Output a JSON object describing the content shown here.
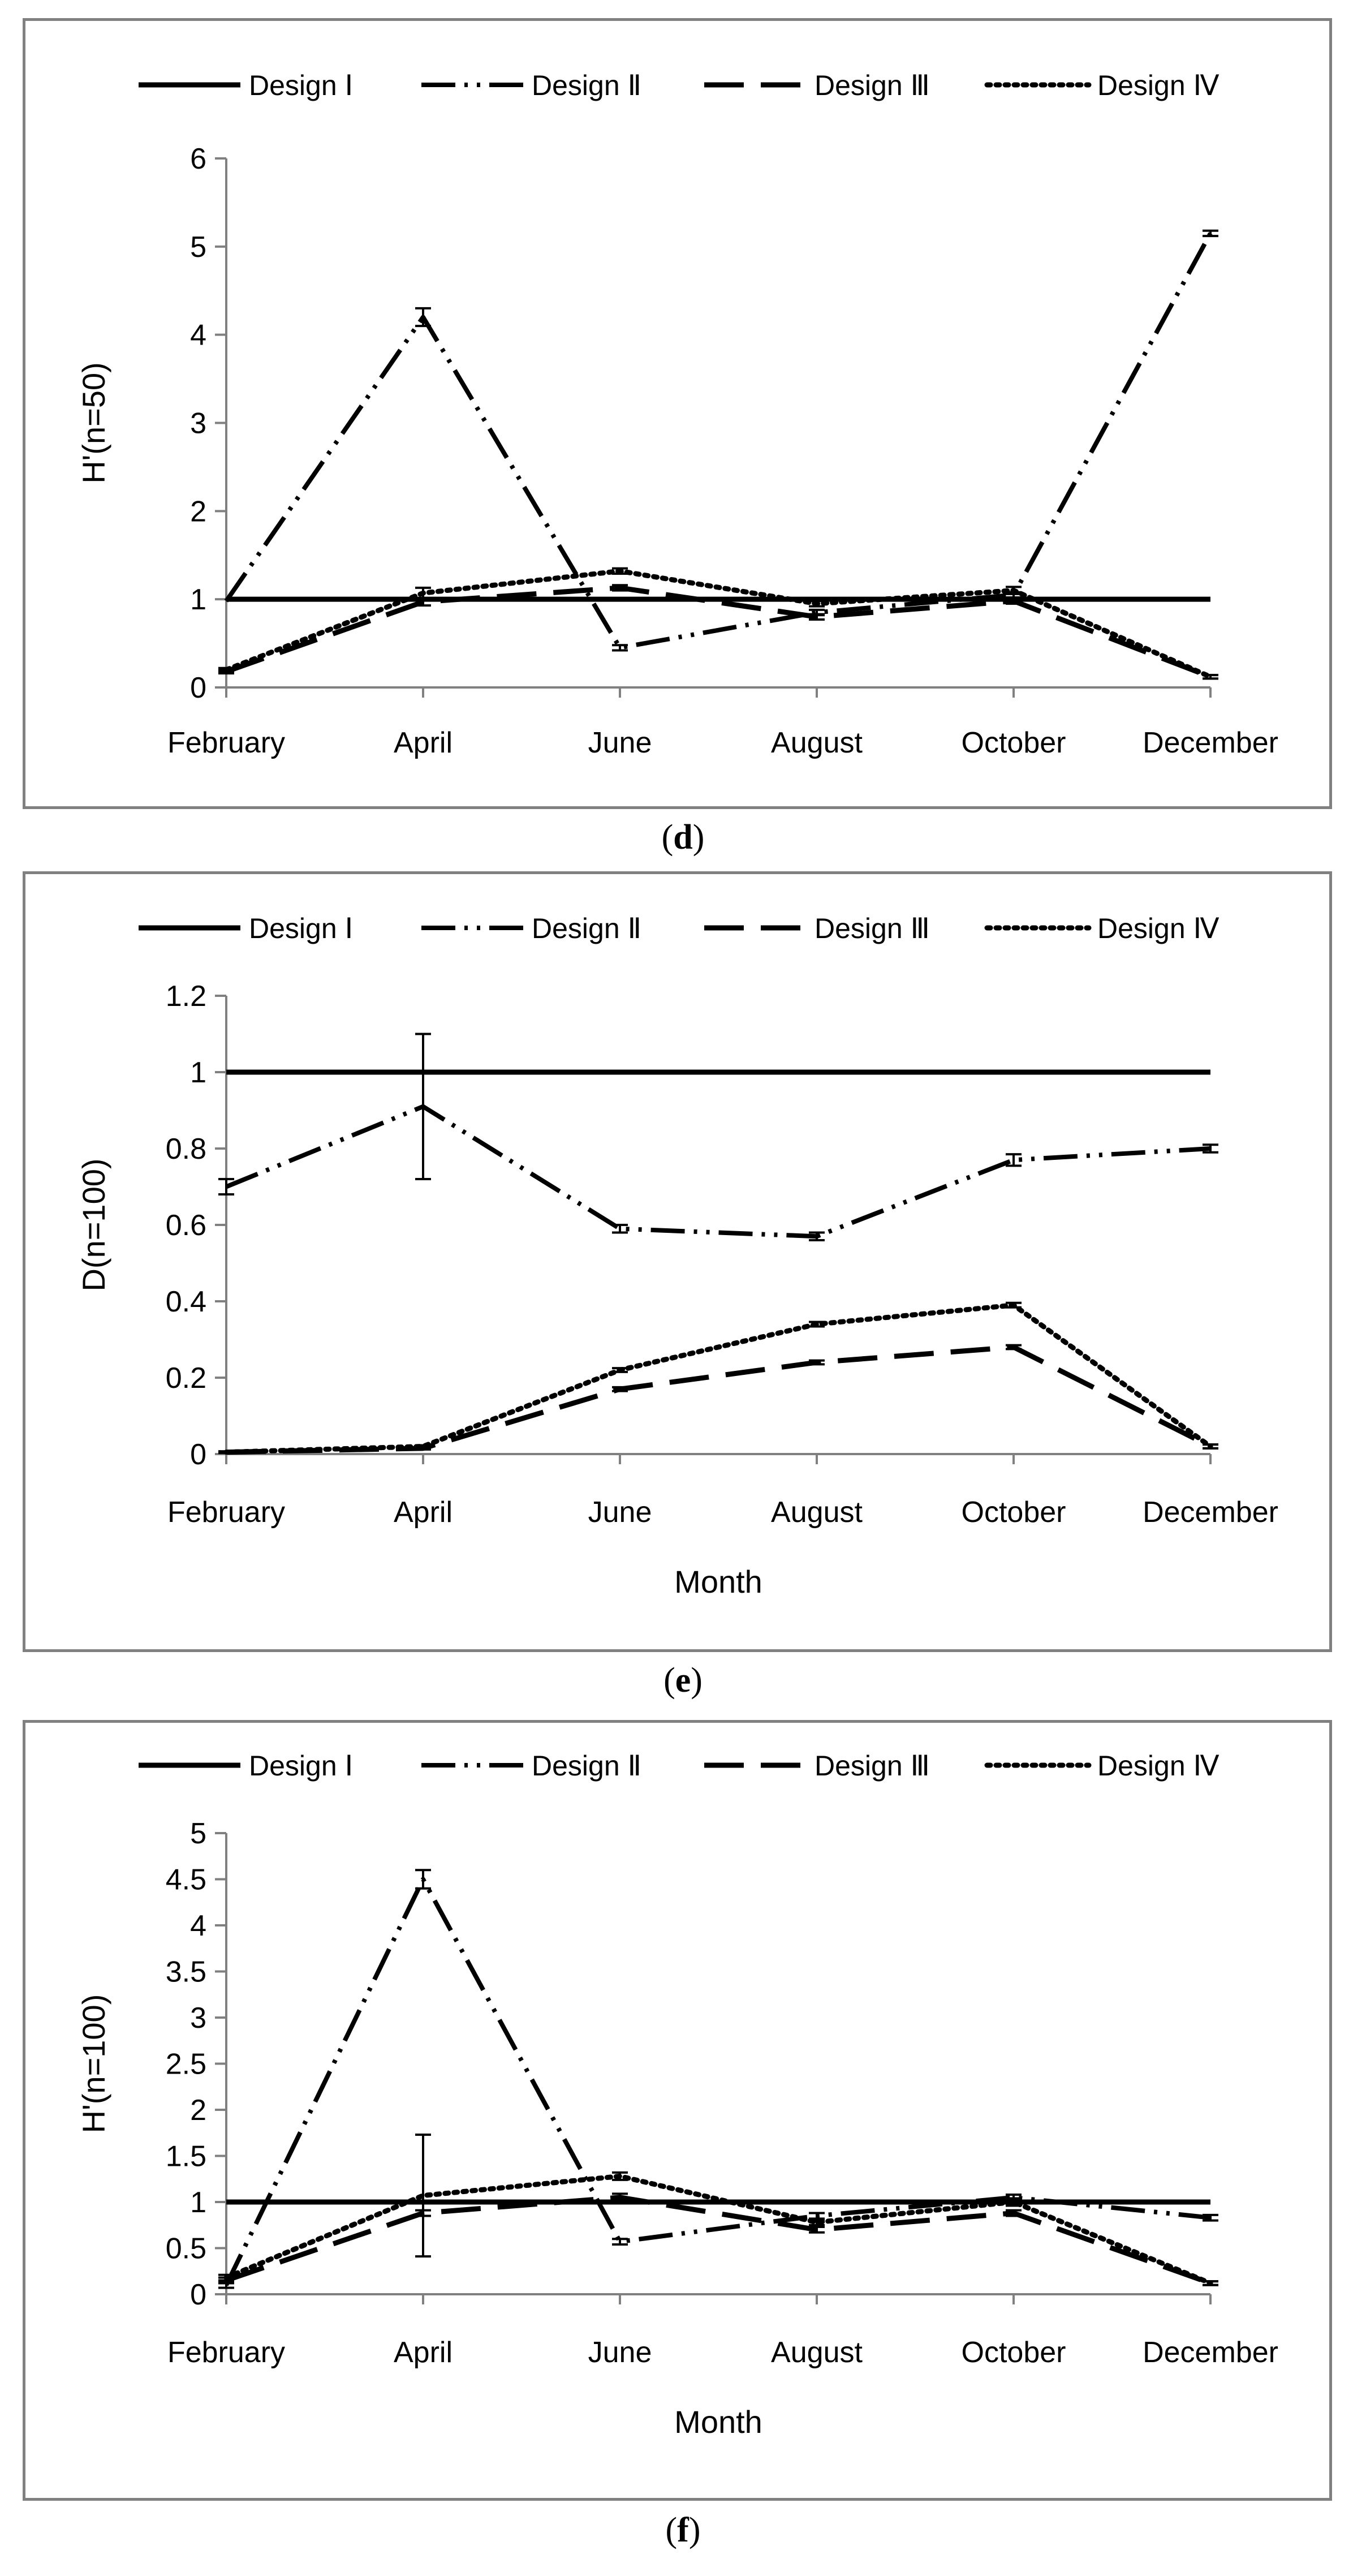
{
  "chart_data": [
    {
      "panel": "d",
      "type": "line",
      "title": "",
      "xlabel": "",
      "ylabel": "H'(n=50)",
      "ylim": [
        0,
        6
      ],
      "yticks": [
        "0",
        "1",
        "2",
        "3",
        "4",
        "5",
        "6"
      ],
      "categories": [
        "February",
        "April",
        "June",
        "August",
        "October",
        "December"
      ],
      "legend": "top",
      "series": [
        {
          "name": "Design Ⅰ",
          "style": "solid",
          "values": [
            1,
            1,
            1,
            1,
            1,
            1
          ],
          "errors": [
            0,
            0,
            0,
            0,
            0,
            0
          ]
        },
        {
          "name": "Design Ⅱ",
          "style": "dashdotdot",
          "values": [
            0.98,
            4.2,
            0.45,
            0.85,
            1.05,
            5.15
          ],
          "errors": [
            0,
            0.1,
            0.03,
            0.03,
            0.03,
            0.03
          ]
        },
        {
          "name": "Design Ⅲ",
          "style": "longdash",
          "values": [
            0.18,
            0.97,
            1.13,
            0.8,
            0.98,
            0.12
          ],
          "errors": [
            0.02,
            0.04,
            0.03,
            0.03,
            0.03,
            0.02
          ]
        },
        {
          "name": "Design Ⅳ",
          "style": "dotted",
          "values": [
            0.2,
            1.07,
            1.32,
            0.95,
            1.1,
            0.12
          ],
          "errors": [
            0.02,
            0.06,
            0.03,
            0.03,
            0.04,
            0.02
          ]
        }
      ]
    },
    {
      "panel": "e",
      "type": "line",
      "title": "",
      "xlabel": "Month",
      "ylabel": "D(n=100)",
      "ylim": [
        0,
        1.2
      ],
      "yticks": [
        "0",
        "0.2",
        "0.4",
        "0.6",
        "0.8",
        "1",
        "1.2"
      ],
      "categories": [
        "February",
        "April",
        "June",
        "August",
        "October",
        "December"
      ],
      "legend": "top",
      "series": [
        {
          "name": "Design Ⅰ",
          "style": "solid",
          "values": [
            1,
            1,
            1,
            1,
            1,
            1
          ],
          "errors": [
            0,
            0,
            0,
            0,
            0,
            0
          ]
        },
        {
          "name": "Design Ⅱ",
          "style": "dashdotdot",
          "values": [
            0.7,
            0.91,
            0.59,
            0.57,
            0.77,
            0.8
          ],
          "errors": [
            0.02,
            0.19,
            0.01,
            0.01,
            0.015,
            0.01
          ]
        },
        {
          "name": "Design Ⅲ",
          "style": "longdash",
          "values": [
            0.005,
            0.015,
            0.17,
            0.24,
            0.28,
            0.02
          ],
          "errors": [
            0.002,
            0.003,
            0.005,
            0.005,
            0.005,
            0.005
          ]
        },
        {
          "name": "Design Ⅳ",
          "style": "dotted",
          "values": [
            0.005,
            0.02,
            0.22,
            0.34,
            0.39,
            0.02
          ],
          "errors": [
            0.002,
            0.003,
            0.005,
            0.006,
            0.006,
            0.005
          ]
        }
      ]
    },
    {
      "panel": "f",
      "type": "line",
      "title": "",
      "xlabel": "Month",
      "ylabel": "H'(n=100)",
      "ylim": [
        0,
        5
      ],
      "yticks": [
        "0",
        "0.5",
        "1",
        "1.5",
        "2",
        "2.5",
        "3",
        "3.5",
        "4",
        "4.5",
        "5"
      ],
      "categories": [
        "February",
        "April",
        "June",
        "August",
        "October",
        "December"
      ],
      "legend": "top",
      "series": [
        {
          "name": "Design Ⅰ",
          "style": "solid",
          "values": [
            1,
            1,
            1,
            1,
            1,
            1
          ],
          "errors": [
            0,
            0,
            0,
            0,
            0,
            0
          ]
        },
        {
          "name": "Design Ⅱ",
          "style": "dashdotdot",
          "values": [
            0.1,
            4.5,
            0.57,
            0.85,
            1.05,
            0.83
          ],
          "errors": [
            0.03,
            0.1,
            0.03,
            0.03,
            0.03,
            0.03
          ]
        },
        {
          "name": "Design Ⅲ",
          "style": "longdash",
          "values": [
            0.15,
            0.88,
            1.05,
            0.7,
            0.88,
            0.12
          ],
          "errors": [
            0.03,
            0.03,
            0.04,
            0.03,
            0.03,
            0.02
          ]
        },
        {
          "name": "Design Ⅳ",
          "style": "dotted",
          "values": [
            0.18,
            1.07,
            1.28,
            0.78,
            1.0,
            0.12
          ],
          "errors": [
            0.03,
            0.66,
            0.04,
            0.03,
            0.04,
            0.02
          ]
        }
      ]
    }
  ],
  "captions": {
    "d": "d",
    "e": "e",
    "f": "f"
  }
}
